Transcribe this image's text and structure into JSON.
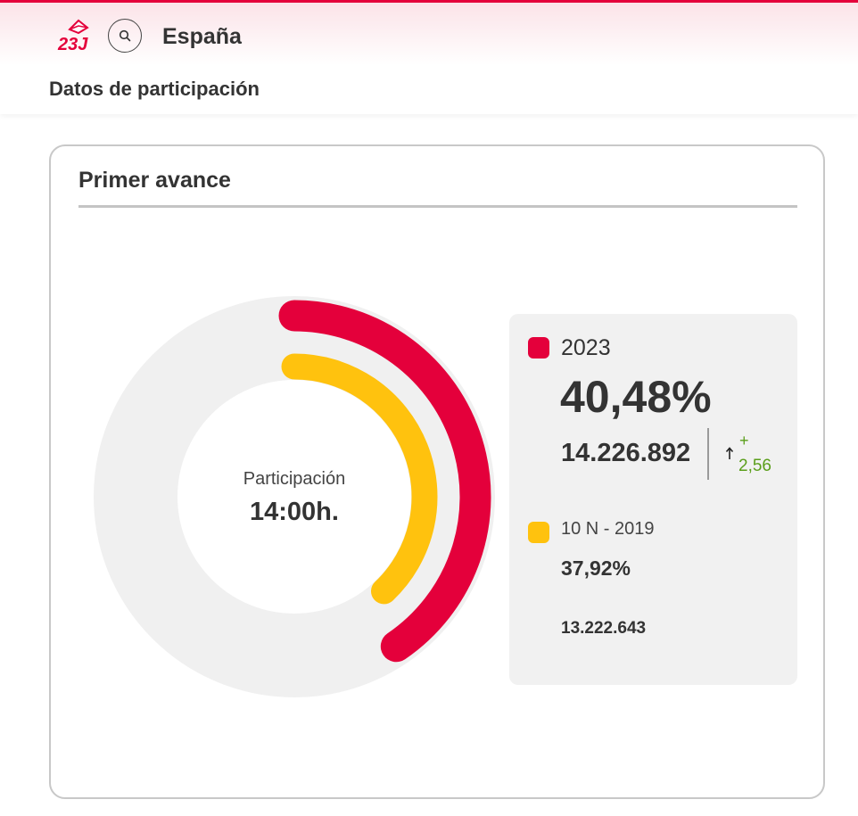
{
  "header": {
    "logo_icon": "23j-ballot-logo-icon",
    "logo_text": "23J",
    "search_icon": "search-icon",
    "region": "España",
    "section_title": "Datos de participación",
    "accent_color": "#e4003b"
  },
  "card": {
    "title": "Primer avance",
    "center_label": "Participación",
    "center_value": "14:00h."
  },
  "legend": {
    "current": {
      "label": "2023",
      "percent": "40,48%",
      "votes": "14.226.892",
      "diff_sign": "+",
      "diff_value": "2,56",
      "diff_icon": "arrow-up-icon",
      "color": "#e4003b"
    },
    "previous": {
      "label": "10 N - 2019",
      "percent": "37,92%",
      "votes": "13.222.643",
      "color": "#ffc20e"
    }
  },
  "chart_data": {
    "type": "donut",
    "track_color": "#f0f0f0",
    "max_value": 100,
    "series": [
      {
        "name": "2023",
        "value": 40.48,
        "color": "#e4003b"
      },
      {
        "name": "10 N - 2019",
        "value": 37.92,
        "color": "#ffc20e"
      }
    ]
  }
}
